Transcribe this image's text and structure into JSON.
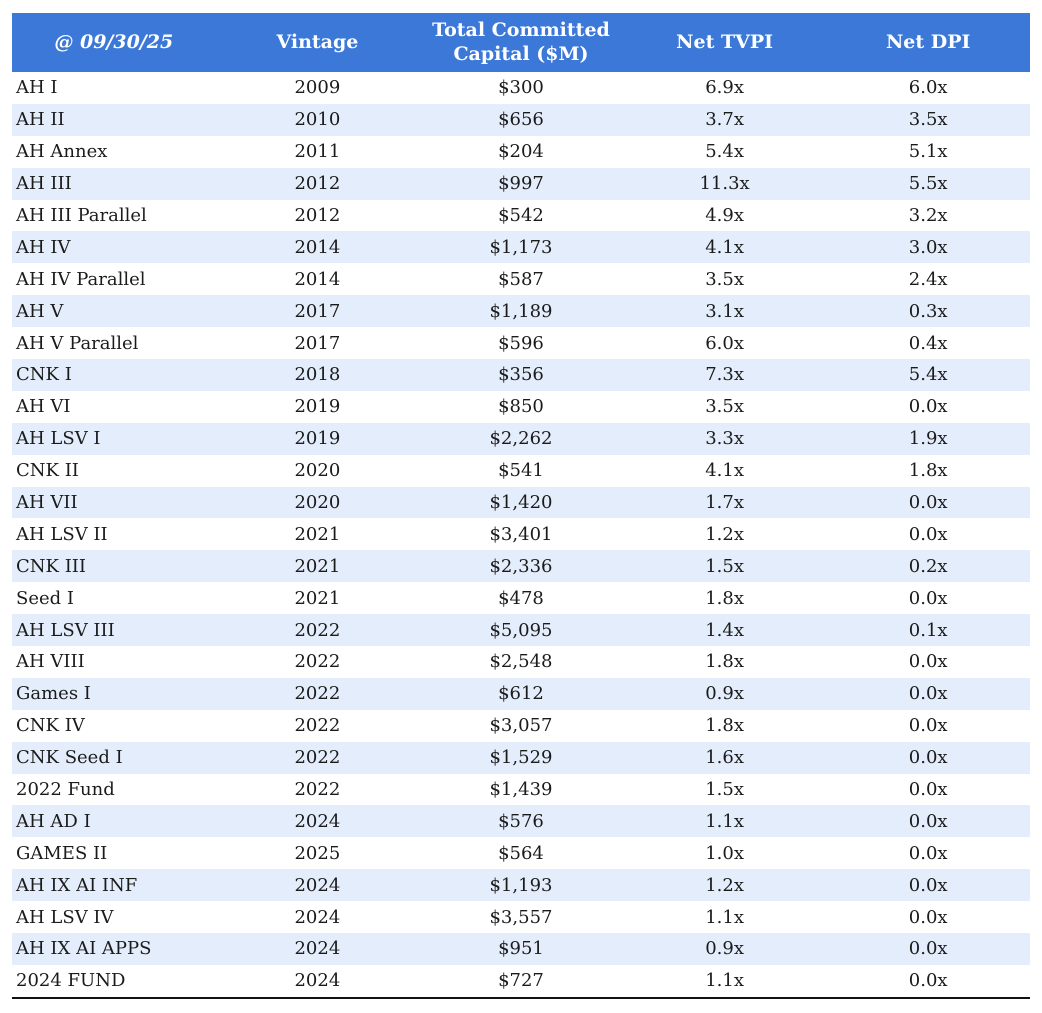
{
  "colors": {
    "header_bg": "#3c78d8",
    "header_text": "#ffffff",
    "row_stripe": "#e4edfb",
    "row_plain": "#ffffff",
    "body_text": "#1b1b1b",
    "bottom_border": "#111111"
  },
  "chart_data": {
    "type": "table",
    "columns": [
      "@ 09/30/25",
      "Vintage",
      "Total Committed Capital ($M)",
      "Net TVPI",
      "Net DPI"
    ],
    "rows": [
      {
        "fund": "AH I",
        "vintage": "2009",
        "capital_m": "$300",
        "net_tvpi": "6.9x",
        "net_dpi": "6.0x"
      },
      {
        "fund": "AH II",
        "vintage": "2010",
        "capital_m": "$656",
        "net_tvpi": "3.7x",
        "net_dpi": "3.5x"
      },
      {
        "fund": "AH Annex",
        "vintage": "2011",
        "capital_m": "$204",
        "net_tvpi": "5.4x",
        "net_dpi": "5.1x"
      },
      {
        "fund": "AH III",
        "vintage": "2012",
        "capital_m": "$997",
        "net_tvpi": "11.3x",
        "net_dpi": "5.5x"
      },
      {
        "fund": "AH III Parallel",
        "vintage": "2012",
        "capital_m": "$542",
        "net_tvpi": "4.9x",
        "net_dpi": "3.2x"
      },
      {
        "fund": "AH IV",
        "vintage": "2014",
        "capital_m": "$1,173",
        "net_tvpi": "4.1x",
        "net_dpi": "3.0x"
      },
      {
        "fund": "AH IV Parallel",
        "vintage": "2014",
        "capital_m": "$587",
        "net_tvpi": "3.5x",
        "net_dpi": "2.4x"
      },
      {
        "fund": "AH V",
        "vintage": "2017",
        "capital_m": "$1,189",
        "net_tvpi": "3.1x",
        "net_dpi": "0.3x"
      },
      {
        "fund": "AH V Parallel",
        "vintage": "2017",
        "capital_m": "$596",
        "net_tvpi": "6.0x",
        "net_dpi": "0.4x"
      },
      {
        "fund": "CNK I",
        "vintage": "2018",
        "capital_m": "$356",
        "net_tvpi": "7.3x",
        "net_dpi": "5.4x"
      },
      {
        "fund": "AH VI",
        "vintage": "2019",
        "capital_m": "$850",
        "net_tvpi": "3.5x",
        "net_dpi": "0.0x"
      },
      {
        "fund": "AH LSV I",
        "vintage": "2019",
        "capital_m": "$2,262",
        "net_tvpi": "3.3x",
        "net_dpi": "1.9x"
      },
      {
        "fund": "CNK II",
        "vintage": "2020",
        "capital_m": "$541",
        "net_tvpi": "4.1x",
        "net_dpi": "1.8x"
      },
      {
        "fund": "AH VII",
        "vintage": "2020",
        "capital_m": "$1,420",
        "net_tvpi": "1.7x",
        "net_dpi": "0.0x"
      },
      {
        "fund": "AH LSV II",
        "vintage": "2021",
        "capital_m": "$3,401",
        "net_tvpi": "1.2x",
        "net_dpi": "0.0x"
      },
      {
        "fund": "CNK III",
        "vintage": "2021",
        "capital_m": "$2,336",
        "net_tvpi": "1.5x",
        "net_dpi": "0.2x"
      },
      {
        "fund": "Seed I",
        "vintage": "2021",
        "capital_m": "$478",
        "net_tvpi": "1.8x",
        "net_dpi": "0.0x"
      },
      {
        "fund": "AH LSV III",
        "vintage": "2022",
        "capital_m": "$5,095",
        "net_tvpi": "1.4x",
        "net_dpi": "0.1x"
      },
      {
        "fund": "AH VIII",
        "vintage": "2022",
        "capital_m": "$2,548",
        "net_tvpi": "1.8x",
        "net_dpi": "0.0x"
      },
      {
        "fund": "Games I",
        "vintage": "2022",
        "capital_m": "$612",
        "net_tvpi": "0.9x",
        "net_dpi": "0.0x"
      },
      {
        "fund": "CNK IV",
        "vintage": "2022",
        "capital_m": "$3,057",
        "net_tvpi": "1.8x",
        "net_dpi": "0.0x"
      },
      {
        "fund": "CNK Seed I",
        "vintage": "2022",
        "capital_m": "$1,529",
        "net_tvpi": "1.6x",
        "net_dpi": "0.0x"
      },
      {
        "fund": "2022 Fund",
        "vintage": "2022",
        "capital_m": "$1,439",
        "net_tvpi": "1.5x",
        "net_dpi": "0.0x"
      },
      {
        "fund": "AH AD I",
        "vintage": "2024",
        "capital_m": "$576",
        "net_tvpi": "1.1x",
        "net_dpi": "0.0x"
      },
      {
        "fund": "GAMES II",
        "vintage": "2025",
        "capital_m": "$564",
        "net_tvpi": "1.0x",
        "net_dpi": "0.0x"
      },
      {
        "fund": "AH IX AI INF",
        "vintage": "2024",
        "capital_m": "$1,193",
        "net_tvpi": "1.2x",
        "net_dpi": "0.0x"
      },
      {
        "fund": "AH LSV IV",
        "vintage": "2024",
        "capital_m": "$3,557",
        "net_tvpi": "1.1x",
        "net_dpi": "0.0x"
      },
      {
        "fund": "AH IX AI APPS",
        "vintage": "2024",
        "capital_m": "$951",
        "net_tvpi": "0.9x",
        "net_dpi": "0.0x"
      },
      {
        "fund": "2024 FUND",
        "vintage": "2024",
        "capital_m": "$727",
        "net_tvpi": "1.1x",
        "net_dpi": "0.0x"
      }
    ]
  }
}
